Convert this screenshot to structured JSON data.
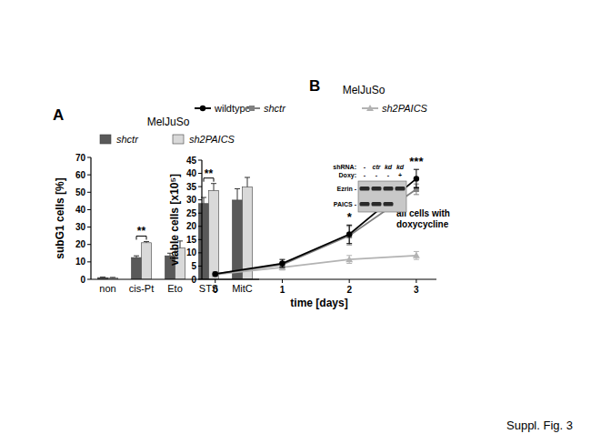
{
  "figure_label": "Suppl. Fig. 3",
  "chart_data": [
    {
      "type": "bar",
      "panel": "A",
      "title": "MelJuSo",
      "y_label": "subG1 cells [%]",
      "categories": [
        "non",
        "cis-Pt",
        "Eto",
        "STS",
        "MitC"
      ],
      "series": [
        {
          "name": "shctr",
          "color": "#595959",
          "values": [
            1,
            12.5,
            13.5,
            43.5,
            45.5
          ],
          "errors": [
            0.3,
            1,
            1.5,
            3.5,
            6.5
          ]
        },
        {
          "name": "sh2PAICS",
          "color": "#d9d9d9",
          "values": [
            0.8,
            21,
            18,
            51,
            53
          ],
          "errors": [
            0.3,
            0.7,
            4,
            4,
            5.5
          ]
        }
      ],
      "ylim": [
        0,
        70
      ],
      "yticks": [
        0,
        10,
        20,
        30,
        40,
        50,
        60,
        70
      ],
      "legend": "top",
      "annotations": [
        {
          "text": "**",
          "category": 1
        },
        {
          "text": "**",
          "category": 3
        }
      ]
    },
    {
      "type": "line",
      "panel": "B",
      "title": "MelJuSo",
      "x_label": "time [days]",
      "y_label": "viable cells [x10⁵]",
      "x": [
        0,
        1,
        2,
        3
      ],
      "series": [
        {
          "name": "wildtype",
          "color": "#000000",
          "marker": "circle",
          "values": [
            2,
            6,
            17,
            38
          ],
          "errors": [
            0.3,
            1.5,
            3.5,
            3.5
          ]
        },
        {
          "name": "shctr",
          "color": "#808080",
          "marker": "square",
          "values": [
            2,
            5.5,
            16.5,
            34
          ],
          "errors": [
            0.3,
            1,
            3.5,
            2
          ]
        },
        {
          "name": "sh2PAICS",
          "color": "#b3b3b3",
          "marker": "triangle",
          "values": [
            1.8,
            4.5,
            7.5,
            9
          ],
          "errors": [
            0.3,
            1,
            1.5,
            1.5
          ]
        }
      ],
      "xlim": [
        -0.2,
        3.3
      ],
      "xticks": [
        0,
        1,
        2,
        3
      ],
      "ylim": [
        0,
        45
      ],
      "yticks": [
        0,
        5,
        10,
        15,
        20,
        25,
        30,
        35,
        40,
        45
      ],
      "legend": "top",
      "annotations": [
        {
          "text": "*",
          "x": 2
        },
        {
          "text": "***",
          "x": 3
        },
        {
          "text": "all cells with doxycycline"
        }
      ],
      "inset": {
        "rows": [
          {
            "label": "shRNA:",
            "lanes": [
              "-",
              "ctr",
              "kd",
              "kd"
            ]
          },
          {
            "label": "Doxy:",
            "lanes": [
              "-",
              "-",
              "-",
              "+"
            ]
          }
        ],
        "bands": [
          {
            "label": "Ezrin -",
            "present": [
              true,
              true,
              true,
              true
            ]
          },
          {
            "label": "PAICS -",
            "present": [
              true,
              true,
              true,
              false
            ]
          }
        ]
      }
    }
  ]
}
